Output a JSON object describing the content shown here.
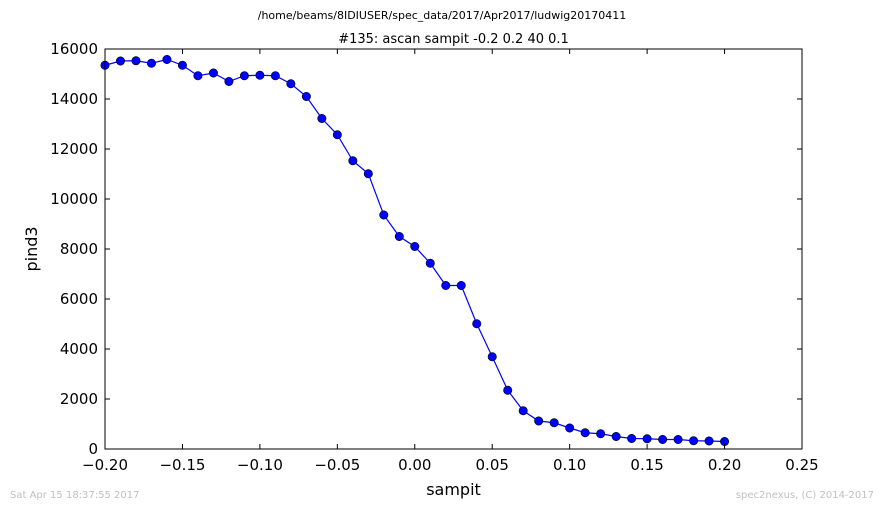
{
  "chart_data": {
    "type": "line",
    "suptitle": "/home/beams/8IDIUSER/spec_data/2017/Apr2017/ludwig20170411",
    "title": "#135: ascan  sampit -0.2 0.2  40 0.1",
    "xlabel": "sampit",
    "ylabel": "pind3",
    "xlim": [
      -0.2,
      0.25
    ],
    "ylim": [
      0,
      16000
    ],
    "xticks": [
      -0.2,
      -0.15,
      -0.1,
      -0.05,
      0.0,
      0.05,
      0.1,
      0.15,
      0.2,
      0.25
    ],
    "xtick_labels": [
      "−0.20",
      "−0.15",
      "−0.10",
      "−0.05",
      "0.00",
      "0.05",
      "0.10",
      "0.15",
      "0.20",
      "0.25"
    ],
    "yticks": [
      0,
      2000,
      4000,
      6000,
      8000,
      10000,
      12000,
      14000,
      16000
    ],
    "ytick_labels": [
      "0",
      "2000",
      "4000",
      "6000",
      "8000",
      "10000",
      "12000",
      "14000",
      "16000"
    ],
    "grid": false,
    "color": "#0000ff",
    "series": [
      {
        "x": [
          -0.2,
          -0.19,
          -0.18,
          -0.17,
          -0.16,
          -0.15,
          -0.14,
          -0.13,
          -0.12,
          -0.11,
          -0.1,
          -0.09,
          -0.08,
          -0.07,
          -0.06,
          -0.05,
          -0.04,
          -0.03,
          -0.02,
          -0.01,
          0.0,
          0.01,
          0.02,
          0.03,
          0.04,
          0.05,
          0.06,
          0.07,
          0.08,
          0.09,
          0.1,
          0.11,
          0.12,
          0.13,
          0.14,
          0.15,
          0.16,
          0.17,
          0.18,
          0.19,
          0.2
        ],
        "y": [
          15350,
          15520,
          15530,
          15430,
          15580,
          15350,
          14930,
          15040,
          14700,
          14930,
          14950,
          14930,
          14610,
          14100,
          13220,
          12570,
          11530,
          11010,
          9360,
          8500,
          8100,
          7430,
          6540,
          6540,
          5010,
          3690,
          2350,
          1530,
          1120,
          1050,
          840,
          650,
          610,
          500,
          420,
          410,
          380,
          380,
          330,
          320,
          300
        ]
      }
    ]
  },
  "footer": {
    "timestamp": "Sat Apr 15 18:37:55 2017",
    "credit": "spec2nexus, (C) 2014-2017"
  }
}
